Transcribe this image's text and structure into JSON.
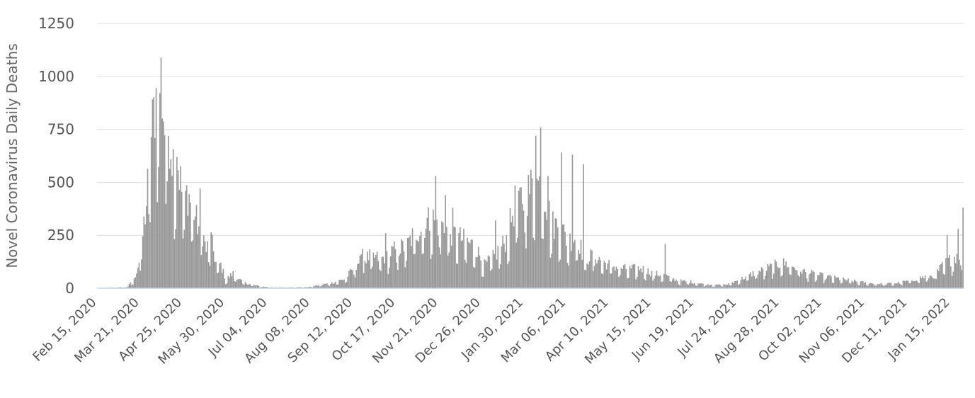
{
  "chart_data": {
    "type": "bar",
    "title": "",
    "xlabel": "",
    "ylabel": "Novel Coronavirus Daily Deaths",
    "ylim": [
      0,
      1250
    ],
    "y_ticks": [
      0,
      250,
      500,
      750,
      1000,
      1250
    ],
    "x_range": [
      "2020-02-15",
      "2022-01-24"
    ],
    "x_tick_labels": [
      "Feb 15, 2020",
      "Mar 21, 2020",
      "Apr 25, 2020",
      "May 30, 2020",
      "Jul 04, 2020",
      "Aug 08, 2020",
      "Sep 12, 2020",
      "Oct 17, 2020",
      "Nov 21, 2020",
      "Dec 26, 2020",
      "Jan 30, 2021",
      "Mar 06, 2021",
      "Apr 10, 2021",
      "May 15, 2021",
      "Jun 19, 2021",
      "Jul 24, 2021",
      "Aug 28, 2021",
      "Oct 02, 2021",
      "Nov 06, 2021",
      "Dec 11, 2021",
      "Jan 15, 2022"
    ],
    "grid": true,
    "bar_color": "#999999",
    "grid_color": "#dddddd",
    "axis_color": "#c4d4e4",
    "series": [
      {
        "values_desc": "approximate daily deaths, weekly keyframes interpolated in script",
        "keyframes": [
          [
            "2020-02-15",
            0
          ],
          [
            "2020-03-10",
            5
          ],
          [
            "2020-03-16",
            40
          ],
          [
            "2020-03-21",
            150
          ],
          [
            "2020-03-26",
            400
          ],
          [
            "2020-03-30",
            700
          ],
          [
            "2020-04-02",
            880
          ],
          [
            "2020-04-05",
            950
          ],
          [
            "2020-04-07",
            990
          ],
          [
            "2020-04-10",
            760
          ],
          [
            "2020-04-14",
            740
          ],
          [
            "2020-04-18",
            560
          ],
          [
            "2020-04-21",
            580
          ],
          [
            "2020-04-25",
            420
          ],
          [
            "2020-04-29",
            450
          ],
          [
            "2020-05-03",
            380
          ],
          [
            "2020-05-07",
            300
          ],
          [
            "2020-05-11",
            260
          ],
          [
            "2020-05-14",
            180
          ],
          [
            "2020-05-18",
            230
          ],
          [
            "2020-05-22",
            120
          ],
          [
            "2020-05-26",
            110
          ],
          [
            "2020-05-30",
            40
          ],
          [
            "2020-06-05",
            70
          ],
          [
            "2020-06-10",
            40
          ],
          [
            "2020-06-15",
            25
          ],
          [
            "2020-06-22",
            15
          ],
          [
            "2020-06-28",
            8
          ],
          [
            "2020-07-10",
            3
          ],
          [
            "2020-08-05",
            5
          ],
          [
            "2020-08-15",
            15
          ],
          [
            "2020-08-25",
            25
          ],
          [
            "2020-09-05",
            45
          ],
          [
            "2020-09-15",
            120
          ],
          [
            "2020-09-25",
            150
          ],
          [
            "2020-10-05",
            140
          ],
          [
            "2020-10-15",
            180
          ],
          [
            "2020-10-25",
            200
          ],
          [
            "2020-11-01",
            260
          ],
          [
            "2020-11-08",
            300
          ],
          [
            "2020-11-15",
            330
          ],
          [
            "2020-11-22",
            300
          ],
          [
            "2020-12-01",
            260
          ],
          [
            "2020-12-10",
            230
          ],
          [
            "2020-12-20",
            200
          ],
          [
            "2020-12-28",
            110
          ],
          [
            "2021-01-05",
            150
          ],
          [
            "2021-01-15",
            230
          ],
          [
            "2021-01-22",
            400
          ],
          [
            "2021-01-30",
            430
          ],
          [
            "2021-02-07",
            500
          ],
          [
            "2021-02-14",
            480
          ],
          [
            "2021-02-21",
            300
          ],
          [
            "2021-02-28",
            300
          ],
          [
            "2021-03-06",
            220
          ],
          [
            "2021-03-14",
            250
          ],
          [
            "2021-03-20",
            130
          ],
          [
            "2021-03-27",
            160
          ],
          [
            "2021-04-05",
            120
          ],
          [
            "2021-04-15",
            100
          ],
          [
            "2021-04-25",
            90
          ],
          [
            "2021-05-05",
            95
          ],
          [
            "2021-05-15",
            70
          ],
          [
            "2021-05-25",
            60
          ],
          [
            "2021-06-05",
            35
          ],
          [
            "2021-06-15",
            30
          ],
          [
            "2021-06-25",
            20
          ],
          [
            "2021-07-05",
            15
          ],
          [
            "2021-07-15",
            18
          ],
          [
            "2021-07-25",
            40
          ],
          [
            "2021-08-05",
            70
          ],
          [
            "2021-08-15",
            90
          ],
          [
            "2021-08-28",
            120
          ],
          [
            "2021-09-05",
            110
          ],
          [
            "2021-09-15",
            80
          ],
          [
            "2021-09-25",
            65
          ],
          [
            "2021-10-05",
            55
          ],
          [
            "2021-10-15",
            45
          ],
          [
            "2021-10-25",
            35
          ],
          [
            "2021-11-06",
            25
          ],
          [
            "2021-11-20",
            20
          ],
          [
            "2021-12-01",
            25
          ],
          [
            "2021-12-11",
            35
          ],
          [
            "2021-12-20",
            50
          ],
          [
            "2021-12-31",
            60
          ],
          [
            "2022-01-08",
            110
          ],
          [
            "2022-01-15",
            140
          ],
          [
            "2022-01-24",
            180
          ]
        ],
        "spikes": [
          [
            "2020-04-20",
            620
          ],
          [
            "2020-05-09",
            470
          ],
          [
            "2020-09-19",
            185
          ],
          [
            "2020-10-08",
            260
          ],
          [
            "2020-11-18",
            530
          ],
          [
            "2020-11-26",
            440
          ],
          [
            "2020-12-02",
            380
          ],
          [
            "2021-01-06",
            320
          ],
          [
            "2021-01-25",
            460
          ],
          [
            "2021-02-08",
            720
          ],
          [
            "2021-02-12",
            760
          ],
          [
            "2021-02-18",
            530
          ],
          [
            "2021-03-01",
            640
          ],
          [
            "2021-03-10",
            630
          ],
          [
            "2021-03-19",
            585
          ],
          [
            "2021-05-25",
            210
          ],
          [
            "2022-01-11",
            250
          ],
          [
            "2022-01-20",
            280
          ],
          [
            "2022-01-24",
            380
          ]
        ]
      }
    ]
  }
}
